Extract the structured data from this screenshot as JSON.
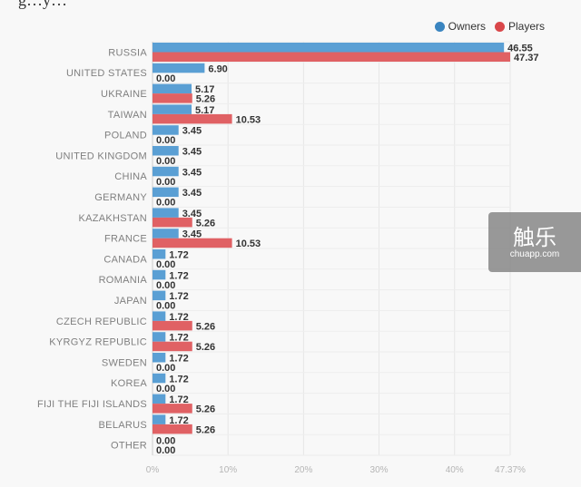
{
  "header": {
    "cut_title": "g…y…"
  },
  "legend": [
    {
      "name": "Owners",
      "color": "#3a85c0"
    },
    {
      "name": "Players",
      "color": "#d9474a"
    }
  ],
  "watermark": {
    "brand": "触乐",
    "site": "chuapp.com"
  },
  "chart_data": {
    "type": "bar",
    "orientation": "horizontal",
    "categories": [
      "RUSSIA",
      "UNITED STATES",
      "UKRAINE",
      "TAIWAN",
      "POLAND",
      "UNITED KINGDOM",
      "CHINA",
      "GERMANY",
      "KAZAKHSTAN",
      "FRANCE",
      "CANADA",
      "ROMANIA",
      "JAPAN",
      "CZECH REPUBLIC",
      "KYRGYZ REPUBLIC",
      "SWEDEN",
      "KOREA",
      "FIJI THE FIJI ISLANDS",
      "BELARUS",
      "OTHER"
    ],
    "series": [
      {
        "name": "Owners",
        "color": "#5a9fd4",
        "values": [
          46.55,
          6.9,
          5.17,
          5.17,
          3.45,
          3.45,
          3.45,
          3.45,
          3.45,
          3.45,
          1.72,
          1.72,
          1.72,
          1.72,
          1.72,
          1.72,
          1.72,
          1.72,
          1.72,
          0.0
        ],
        "labels": [
          "46.55",
          "6.90",
          "5.17",
          "5.17",
          "3.45",
          "3.45",
          "3.45",
          "3.45",
          "3.45",
          "3.45",
          "1.72",
          "1.72",
          "1.72",
          "1.72",
          "1.72",
          "1.72",
          "1.72",
          "1.72",
          "1.72",
          "0.00"
        ]
      },
      {
        "name": "Players",
        "color": "#e06164",
        "values": [
          47.37,
          0.0,
          5.26,
          10.53,
          0.0,
          0.0,
          0.0,
          0.0,
          5.26,
          10.53,
          0.0,
          0.0,
          0.0,
          5.26,
          5.26,
          0.0,
          0.0,
          5.26,
          5.26,
          0.0
        ],
        "labels": [
          "47.37",
          "0.00",
          "5.26",
          "10.53",
          "0.00",
          "0.00",
          "0.00",
          "0.00",
          "5.26",
          "10.53",
          "0.00",
          "0.00",
          "0.00",
          "5.26",
          "5.26",
          "0.00",
          "0.00",
          "5.26",
          "5.26",
          "0.00"
        ]
      }
    ],
    "xlim": [
      0,
      47.37
    ],
    "xticks": [
      0,
      10,
      20,
      30,
      40,
      47.37
    ],
    "xtick_labels": [
      "0%",
      "10%",
      "20%",
      "30%",
      "40%",
      "47.37%"
    ],
    "grid": true,
    "legend_position": "top-right"
  }
}
